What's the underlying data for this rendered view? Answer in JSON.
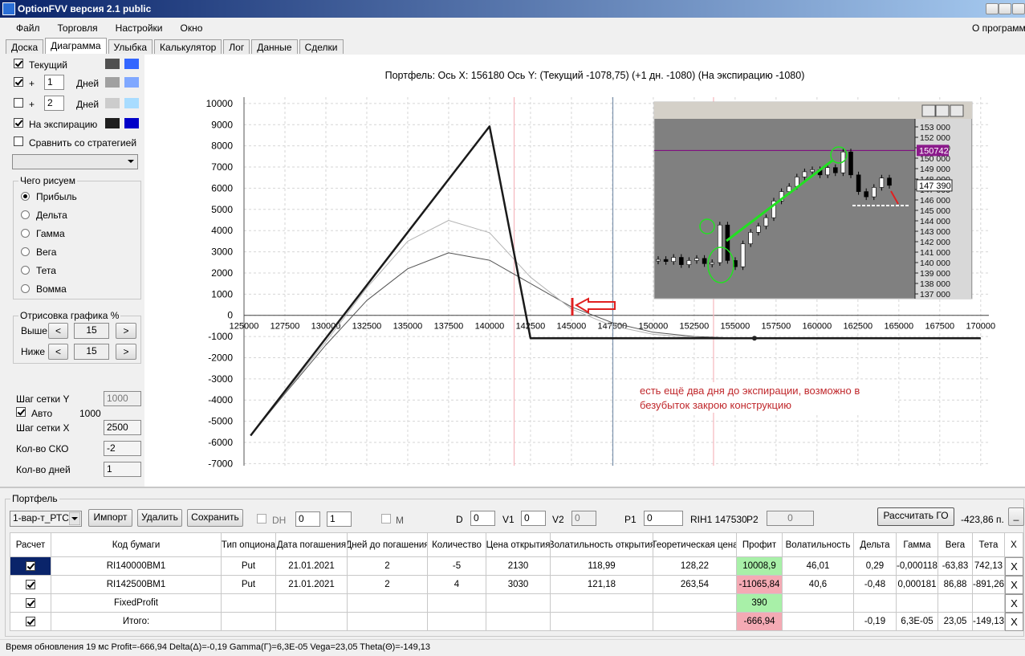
{
  "window": {
    "title": "OptionFVV версия 2.1 public"
  },
  "menu": [
    "Файл",
    "Торговля",
    "Настройки",
    "Окно"
  ],
  "menu_right": "О программе",
  "tabs": [
    "Доска",
    "Диаграмма",
    "Улыбка",
    "Калькулятор",
    "Лог",
    "Данные",
    "Сделки"
  ],
  "left_panel": {
    "current": "Текущий",
    "plus": "+",
    "days": "Дней",
    "days1": "1",
    "days2": "2",
    "expiration": "На экспирацию",
    "compare": "Сравнить со стратегией",
    "what_group": "Чего рисуем",
    "what_options": [
      "Прибыль",
      "Дельта",
      "Гамма",
      "Вега",
      "Тета",
      "Вомма"
    ],
    "draw_group": "Отрисовка графика %",
    "above": "Выше",
    "above_value": "15",
    "below": "Ниже",
    "below_value": "15",
    "prev": "<",
    "next": ">",
    "grid_y": "Шаг сетки Y",
    "grid_y_value": "1000",
    "auto": "Авто",
    "auto_value": "1000",
    "grid_x": "Шаг сетки X",
    "grid_x_value": "2500",
    "sko": "Кол-во СКО",
    "sko_value": "-2",
    "ndays": "Кол-во дней",
    "ndays_value": "1"
  },
  "chart_data": {
    "type": "line",
    "title": "Портфель:  Ось X:  156180  Ось Y:   (Текущий -1078,75)  (+1 дн. -1080)  (На экспирацию -1080)",
    "xlim": [
      125000,
      170500
    ],
    "ylim": [
      -7100,
      10300
    ],
    "xticks": [
      125000,
      127500,
      130000,
      132500,
      135000,
      137500,
      140000,
      142500,
      145000,
      147500,
      150000,
      152500,
      155000,
      157500,
      160000,
      162500,
      165000,
      167500,
      170000
    ],
    "yticks": [
      -7000,
      -6000,
      -5000,
      -4000,
      -3000,
      -2000,
      -1000,
      0,
      1000,
      2000,
      3000,
      4000,
      5000,
      6000,
      7000,
      8000,
      9000,
      10000
    ],
    "grid": true,
    "series": [
      {
        "color": "#555555",
        "x": [
          125400,
          127500,
          130000,
          132500,
          135000,
          137500,
          140000,
          142500,
          145000,
          147500,
          150000,
          152500,
          155000,
          160000,
          170000
        ],
        "values": [
          -5680,
          -3700,
          -1400,
          700,
          2200,
          2950,
          2600,
          1500,
          400,
          -350,
          -800,
          -1000,
          -1070,
          -1080,
          -1080
        ]
      },
      {
        "color": "#b4b4b4",
        "x": [
          125400,
          127500,
          130000,
          132500,
          135000,
          137500,
          140000,
          142500,
          145000,
          147500,
          150000,
          152500,
          155000,
          160000,
          170000
        ],
        "values": [
          -5680,
          -3650,
          -1250,
          1300,
          3500,
          4480,
          3900,
          1800,
          300,
          -500,
          -900,
          -1050,
          -1078,
          -1080,
          -1080
        ]
      },
      {
        "color": "#1a1a1a",
        "x": [
          125400,
          140000,
          142500,
          170000
        ],
        "values": [
          -5680,
          8920,
          -1080,
          -1080
        ]
      }
    ],
    "markers": [
      {
        "x": 141500,
        "color": "#f6b6bd"
      },
      {
        "x": 147530,
        "color": "#7d93ad"
      },
      {
        "x": 153680,
        "color": "#f6b6bd"
      }
    ],
    "point": {
      "x": 156180,
      "y": -1080
    },
    "annotation": "есть ещё два дня до экспирации, возможно в безубыток закрою конструкцию",
    "inset": {
      "ylim": [
        136540,
        153770
      ],
      "yticks": [
        {
          "value": 153000,
          "label": "153 000"
        },
        {
          "value": 152000,
          "label": "152 000"
        },
        {
          "value": 151000,
          "label": "151 000"
        },
        {
          "value": 150000,
          "label": "150 000"
        },
        {
          "value": 149000,
          "label": "149 000"
        },
        {
          "value": 148000,
          "label": "148 000"
        },
        {
          "value": 147000,
          "label": "147 000"
        },
        {
          "value": 146000,
          "label": "146 000"
        },
        {
          "value": 145000,
          "label": "145 000"
        },
        {
          "value": 144000,
          "label": "144 000"
        },
        {
          "value": 143000,
          "label": "143 000"
        },
        {
          "value": 142000,
          "label": "142 000"
        },
        {
          "value": 141000,
          "label": "141 000"
        },
        {
          "value": 140000,
          "label": "140 000"
        },
        {
          "value": 139000,
          "label": "139 000"
        },
        {
          "value": 138000,
          "label": "138 000"
        },
        {
          "value": 137000,
          "label": "137 000"
        }
      ],
      "values": [
        140300,
        140100,
        140500,
        139800,
        140200,
        140400,
        139900,
        140000,
        143600,
        140200,
        139600,
        141800,
        142900,
        143500,
        144300,
        145900,
        146800,
        147300,
        148200,
        148700,
        148900,
        148400,
        149100,
        148600,
        150600,
        148400,
        146800,
        146300,
        147200,
        148100,
        147400
      ],
      "level": 150742,
      "price": {
        "value": 147390,
        "label": "147 390"
      }
    }
  },
  "portfolio": {
    "group": "Портфель",
    "combo": "1-вар-т_РТС",
    "import": "Импорт",
    "delete": "Удалить",
    "save": "Сохранить",
    "dh": "DH",
    "spin1": "0",
    "spin2": "1",
    "m": "M",
    "d": "D",
    "d_value": "0",
    "v1": "V1",
    "v1_value": "0",
    "v2": "V2",
    "v2_value": "0",
    "p1": "P1",
    "p1_value": "0",
    "instrument": "RIH1 147530",
    "p2": "P2",
    "p2_value": "0",
    "calc": "Рассчитать ГО",
    "go_value": "-423,86 п.",
    "minimize": "_"
  },
  "table": {
    "headers": [
      "Расчет",
      "Код бумаги",
      "Тип опциона",
      "Дата погашения",
      "Дней до погашения",
      "Количество",
      "Цена открытия",
      "Волатильность открытия",
      "Теоретическая цена",
      "Профит",
      "Волатильность",
      "Дельта",
      "Гамма",
      "Вега",
      "Тета",
      "X"
    ],
    "rows": [
      {
        "profit_color": "#a8f0a8",
        "cells": [
          "RI140000BM1",
          "Put",
          "21.01.2021",
          "2",
          "-5",
          "2130",
          "118,99",
          "128,22",
          "10008,9",
          "46,01",
          "0,29",
          "-0,000118",
          "-63,83",
          "742,13",
          "X"
        ]
      },
      {
        "profit_color": "#f4aab4",
        "cells": [
          "RI142500BM1",
          "Put",
          "21.01.2021",
          "2",
          "4",
          "3030",
          "121,18",
          "263,54",
          "-11065,84",
          "40,6",
          "-0,48",
          "0,000181",
          "86,88",
          "-891,26",
          "X"
        ]
      },
      {
        "profit_color": "#a8f0a8",
        "cells": [
          "FixedProfit",
          null,
          null,
          null,
          null,
          null,
          null,
          null,
          "390",
          null,
          null,
          null,
          null,
          null,
          "X"
        ]
      },
      {
        "profit_color": "#f4aab4",
        "cells": [
          "Итого:",
          null,
          null,
          null,
          null,
          null,
          null,
          null,
          "-666,94",
          null,
          "-0,19",
          "6,3E-05",
          "23,05",
          "-149,13",
          "X"
        ]
      }
    ]
  },
  "status": "Время обновления 19 мс  Profit=-666,94 Delta(Δ)=-0,19 Gamma(Γ)=6,3E-05 Vega=23,05 Theta(Θ)=-149,13"
}
